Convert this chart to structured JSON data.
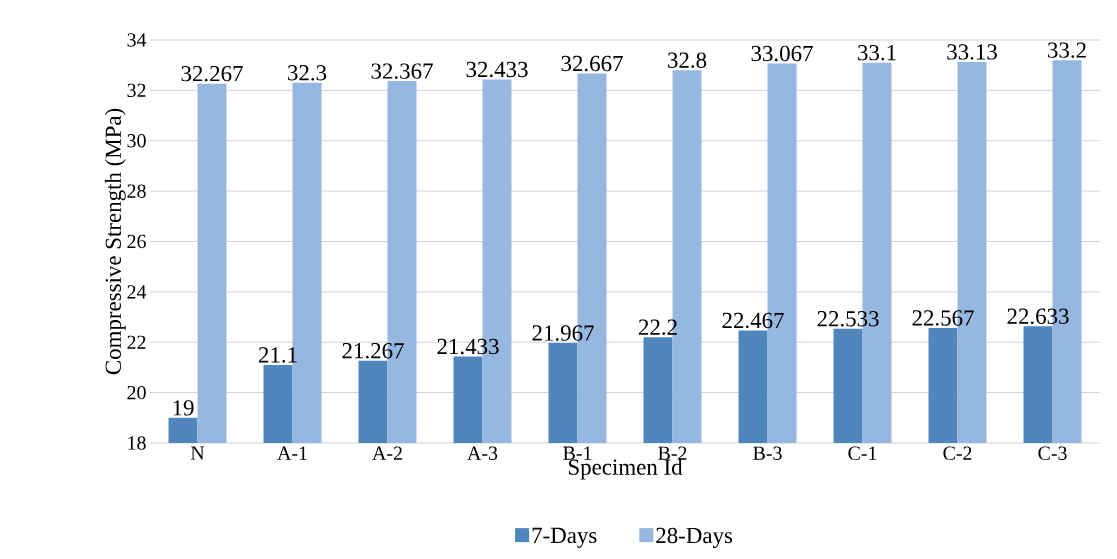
{
  "chart_data": {
    "type": "bar",
    "xlabel": "Specimen Id",
    "ylabel": "Compressive Strength (MPa)",
    "categories": [
      "N",
      "A-1",
      "A-2",
      "A-3",
      "B-1",
      "B-2",
      "B-3",
      "C-1",
      "C-2",
      "C-3"
    ],
    "series": [
      {
        "name": "7-Days",
        "color": "#4f87bd",
        "values": [
          19,
          21.1,
          21.267,
          21.433,
          21.967,
          22.2,
          22.467,
          22.533,
          22.567,
          22.633
        ]
      },
      {
        "name": "28-Days",
        "color": "#95b7e0",
        "values": [
          32.267,
          32.3,
          32.367,
          32.433,
          32.667,
          32.8,
          33.067,
          33.1,
          33.13,
          33.2
        ]
      }
    ],
    "ylim": [
      18,
      34
    ],
    "yticks": [
      18,
      20,
      22,
      24,
      26,
      28,
      30,
      32,
      34
    ],
    "grid": "y",
    "legend": "bottom",
    "data_labels": true
  }
}
